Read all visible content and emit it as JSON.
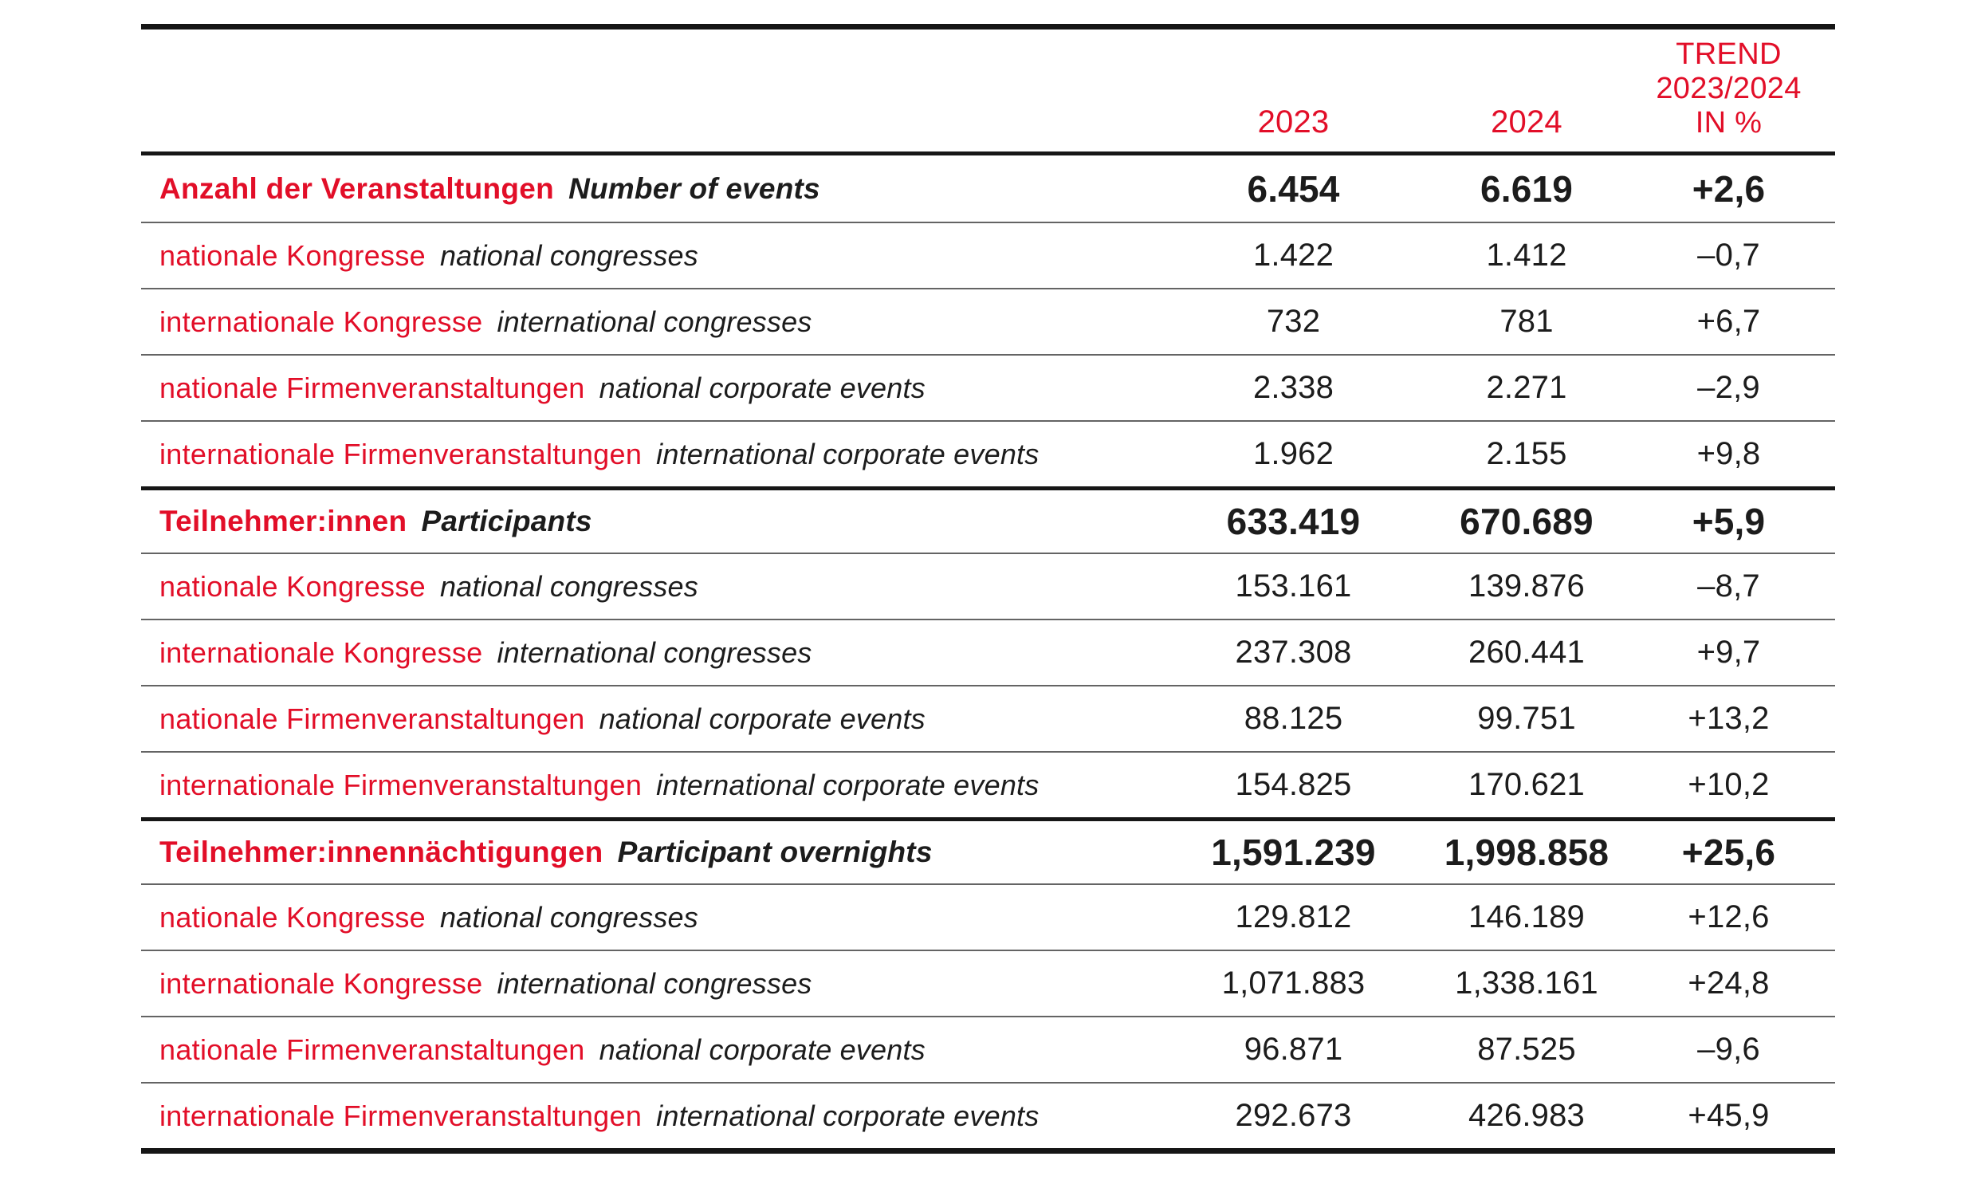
{
  "accent_color": "#e20e28",
  "text_color": "#1c1c1c",
  "rule_color": "#161616",
  "header": {
    "col_2023": "2023",
    "col_2024": "2024",
    "trend_label": "TREND\n2023/2024\nIN %"
  },
  "chart_data": {
    "type": "table",
    "columns": [
      "",
      "2023",
      "2024",
      "TREND 2023/2024 IN %"
    ],
    "rows": [
      {
        "label_de": "Anzahl der Veranstaltungen",
        "label_en": "Number of events",
        "v2023": "6.454",
        "v2024": "6.619",
        "trend": "+2,6",
        "section": true
      },
      {
        "label_de": "nationale Kongresse",
        "label_en": "national congresses",
        "v2023": "1.422",
        "v2024": "1.412",
        "trend": "–0,7",
        "section": false
      },
      {
        "label_de": "internationale Kongresse",
        "label_en": "international congresses",
        "v2023": "732",
        "v2024": "781",
        "trend": "+6,7",
        "section": false
      },
      {
        "label_de": "nationale Firmenveranstaltungen",
        "label_en": "national corporate events",
        "v2023": "2.338",
        "v2024": "2.271",
        "trend": "–2,9",
        "section": false
      },
      {
        "label_de": "internationale Firmenveranstaltungen",
        "label_en": "international corporate events",
        "v2023": "1.962",
        "v2024": "2.155",
        "trend": "+9,8",
        "section": false
      },
      {
        "label_de": "Teilnehmer:innen",
        "label_en": "Participants",
        "v2023": "633.419",
        "v2024": "670.689",
        "trend": "+5,9",
        "section": true
      },
      {
        "label_de": "nationale Kongresse",
        "label_en": "national congresses",
        "v2023": "153.161",
        "v2024": "139.876",
        "trend": "–8,7",
        "section": false
      },
      {
        "label_de": "internationale Kongresse",
        "label_en": "international congresses",
        "v2023": "237.308",
        "v2024": "260.441",
        "trend": "+9,7",
        "section": false
      },
      {
        "label_de": "nationale Firmenveranstaltungen",
        "label_en": "national corporate events",
        "v2023": "88.125",
        "v2024": "99.751",
        "trend": "+13,2",
        "section": false
      },
      {
        "label_de": "internationale Firmenveranstaltungen",
        "label_en": "international corporate events",
        "v2023": "154.825",
        "v2024": "170.621",
        "trend": "+10,2",
        "section": false
      },
      {
        "label_de": "Teilnehmer:innennächtigungen",
        "label_en": "Participant overnights",
        "v2023": "1,591.239",
        "v2024": "1,998.858",
        "trend": "+25,6",
        "section": true
      },
      {
        "label_de": "nationale Kongresse",
        "label_en": "national congresses",
        "v2023": "129.812",
        "v2024": "146.189",
        "trend": "+12,6",
        "section": false
      },
      {
        "label_de": "internationale Kongresse",
        "label_en": "international congresses",
        "v2023": "1,071.883",
        "v2024": "1,338.161",
        "trend": "+24,8",
        "section": false
      },
      {
        "label_de": "nationale Firmenveranstaltungen",
        "label_en": "national corporate events",
        "v2023": "96.871",
        "v2024": "87.525",
        "trend": "–9,6",
        "section": false
      },
      {
        "label_de": "internationale Firmenveranstaltungen",
        "label_en": "international corporate events",
        "v2023": "292.673",
        "v2024": "426.983",
        "trend": "+45,9",
        "section": false
      }
    ]
  }
}
